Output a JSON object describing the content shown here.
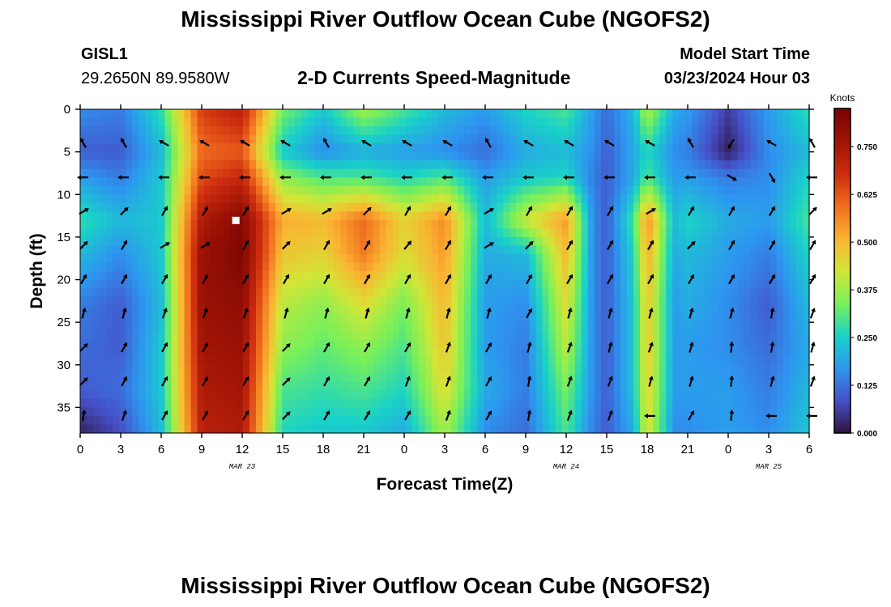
{
  "header": {
    "title": "Mississippi River Outflow Ocean Cube (NGOFS2)",
    "station": "GISL1",
    "coordinates": "29.2650N  89.9580W",
    "subtitle": "2-D Currents Speed-Magnitude",
    "model_start_label": "Model Start Time",
    "model_start_value": "03/23/2024 Hour 03"
  },
  "footer": {
    "title_repeat": "Mississippi River Outflow Ocean Cube (NGOFS2)"
  },
  "chart_data": {
    "type": "heatmap",
    "xlabel": "Forecast Time(Z)",
    "ylabel": "Depth (ft)",
    "x_hours": [
      0,
      54
    ],
    "x_tick_hours": [
      0,
      3,
      6,
      9,
      12,
      15,
      18,
      21,
      24,
      27,
      30,
      33,
      36,
      39,
      42,
      45,
      48,
      51,
      54
    ],
    "x_tick_labels": [
      "0",
      "3",
      "6",
      "9",
      "12",
      "15",
      "18",
      "21",
      "0",
      "3",
      "6",
      "9",
      "12",
      "15",
      "18",
      "21",
      "0",
      "3",
      "6"
    ],
    "date_markers": [
      {
        "hour": 12,
        "label": "MAR 23"
      },
      {
        "hour": 36,
        "label": "MAR 24"
      },
      {
        "hour": 51,
        "label": "MAR 25"
      }
    ],
    "ylim": [
      0,
      38
    ],
    "y_ticks": [
      0,
      5,
      10,
      15,
      20,
      25,
      30,
      35
    ],
    "colorbar": {
      "label": "Knots",
      "range": [
        0,
        0.85
      ],
      "ticks": [
        0.0,
        0.125,
        0.25,
        0.375,
        0.5,
        0.625,
        0.75
      ],
      "tick_labels": [
        "0.000",
        "0.125",
        "0.250",
        "0.375",
        "0.500",
        "0.625",
        "0.750"
      ]
    },
    "speed_knots_profiles": [
      {
        "hour": 0,
        "speeds": [
          0.16,
          0.1,
          0.18,
          0.28,
          0.22,
          0.14,
          0.12,
          0.1,
          0.02
        ]
      },
      {
        "hour": 3,
        "speeds": [
          0.14,
          0.1,
          0.14,
          0.22,
          0.16,
          0.1,
          0.1,
          0.12,
          0.08
        ]
      },
      {
        "hour": 6,
        "speeds": [
          0.28,
          0.22,
          0.24,
          0.24,
          0.24,
          0.22,
          0.24,
          0.24,
          0.22
        ]
      },
      {
        "hour": 9,
        "speeds": [
          0.66,
          0.6,
          0.64,
          0.74,
          0.78,
          0.78,
          0.76,
          0.74,
          0.72
        ]
      },
      {
        "hour": 12,
        "speeds": [
          0.72,
          0.62,
          0.7,
          0.82,
          0.84,
          0.8,
          0.78,
          0.76,
          0.74
        ]
      },
      {
        "hour": 15,
        "speeds": [
          0.34,
          0.24,
          0.36,
          0.52,
          0.48,
          0.4,
          0.36,
          0.3,
          0.26
        ]
      },
      {
        "hour": 18,
        "speeds": [
          0.24,
          0.16,
          0.3,
          0.5,
          0.46,
          0.36,
          0.32,
          0.28,
          0.24
        ]
      },
      {
        "hour": 21,
        "speeds": [
          0.38,
          0.2,
          0.3,
          0.6,
          0.58,
          0.44,
          0.36,
          0.3,
          0.24
        ]
      },
      {
        "hour": 24,
        "speeds": [
          0.3,
          0.18,
          0.26,
          0.46,
          0.44,
          0.34,
          0.3,
          0.26,
          0.2
        ]
      },
      {
        "hour": 27,
        "speeds": [
          0.22,
          0.16,
          0.3,
          0.56,
          0.54,
          0.5,
          0.48,
          0.44,
          0.38
        ]
      },
      {
        "hour": 30,
        "speeds": [
          0.18,
          0.12,
          0.18,
          0.22,
          0.2,
          0.18,
          0.18,
          0.2,
          0.16
        ]
      },
      {
        "hour": 33,
        "speeds": [
          0.26,
          0.2,
          0.24,
          0.42,
          0.22,
          0.16,
          0.14,
          0.14,
          0.12
        ]
      },
      {
        "hour": 36,
        "speeds": [
          0.3,
          0.22,
          0.26,
          0.54,
          0.5,
          0.44,
          0.4,
          0.34,
          0.3
        ]
      },
      {
        "hour": 38,
        "speeds": [
          0.18,
          0.16,
          0.14,
          0.16,
          0.16,
          0.16,
          0.16,
          0.16,
          0.14
        ]
      },
      {
        "hour": 39,
        "speeds": [
          0.12,
          0.1,
          0.1,
          0.1,
          0.1,
          0.1,
          0.1,
          0.1,
          0.1
        ]
      },
      {
        "hour": 41,
        "speeds": [
          0.22,
          0.2,
          0.2,
          0.3,
          0.26,
          0.24,
          0.24,
          0.24,
          0.2
        ]
      },
      {
        "hour": 42,
        "speeds": [
          0.4,
          0.26,
          0.3,
          0.56,
          0.52,
          0.48,
          0.48,
          0.46,
          0.44
        ]
      },
      {
        "hour": 44,
        "speeds": [
          0.2,
          0.16,
          0.18,
          0.22,
          0.2,
          0.18,
          0.18,
          0.18,
          0.16
        ]
      },
      {
        "hour": 45,
        "speeds": [
          0.18,
          0.14,
          0.18,
          0.26,
          0.22,
          0.2,
          0.18,
          0.18,
          0.16
        ]
      },
      {
        "hour": 48,
        "speeds": [
          0.06,
          0.02,
          0.14,
          0.2,
          0.18,
          0.16,
          0.16,
          0.18,
          0.18
        ]
      },
      {
        "hour": 51,
        "speeds": [
          0.18,
          0.16,
          0.16,
          0.18,
          0.14,
          0.1,
          0.12,
          0.14,
          0.16
        ]
      },
      {
        "hour": 54,
        "speeds": [
          0.28,
          0.22,
          0.26,
          0.3,
          0.26,
          0.22,
          0.2,
          0.22,
          0.24
        ]
      }
    ],
    "profile_depths_ft": [
      0,
      5,
      8,
      13,
      17,
      23,
      28,
      33,
      38
    ],
    "vector_depths_ft": [
      4,
      8,
      12,
      16,
      20,
      24,
      28,
      32,
      36
    ],
    "vector_hours": [
      0,
      3,
      6,
      9,
      12,
      15,
      18,
      21,
      24,
      27,
      30,
      33,
      36,
      39,
      42,
      45,
      48,
      51,
      54
    ],
    "vector_direction_deg": [
      [
        330,
        330,
        300,
        300,
        300,
        300,
        330,
        300,
        300,
        300,
        330,
        300,
        300,
        300,
        300,
        330,
        210,
        300,
        330
      ],
      [
        270,
        270,
        270,
        270,
        270,
        270,
        270,
        270,
        270,
        270,
        270,
        270,
        270,
        270,
        270,
        270,
        120,
        150,
        270
      ],
      [
        60,
        45,
        30,
        30,
        30,
        60,
        60,
        45,
        30,
        30,
        60,
        30,
        30,
        30,
        60,
        30,
        30,
        30,
        45
      ],
      [
        45,
        30,
        60,
        60,
        30,
        45,
        30,
        30,
        40,
        30,
        60,
        45,
        30,
        30,
        30,
        45,
        30,
        30,
        30
      ],
      [
        30,
        30,
        30,
        30,
        30,
        30,
        30,
        30,
        30,
        30,
        30,
        30,
        30,
        30,
        30,
        30,
        30,
        30,
        30
      ],
      [
        15,
        15,
        20,
        20,
        20,
        15,
        15,
        15,
        15,
        15,
        15,
        30,
        15,
        15,
        15,
        15,
        15,
        10,
        20
      ],
      [
        45,
        30,
        30,
        30,
        30,
        45,
        30,
        30,
        30,
        20,
        30,
        15,
        20,
        15,
        20,
        15,
        5,
        10,
        15
      ],
      [
        45,
        30,
        30,
        30,
        30,
        45,
        30,
        30,
        20,
        20,
        30,
        10,
        20,
        20,
        15,
        15,
        5,
        15,
        20
      ],
      [
        10,
        20,
        30,
        30,
        30,
        45,
        30,
        30,
        30,
        20,
        30,
        10,
        20,
        20,
        270,
        30,
        5,
        270,
        270
      ]
    ],
    "marker": {
      "hour": 11.5,
      "depth_ft": 13,
      "color": "#ffffff"
    }
  }
}
